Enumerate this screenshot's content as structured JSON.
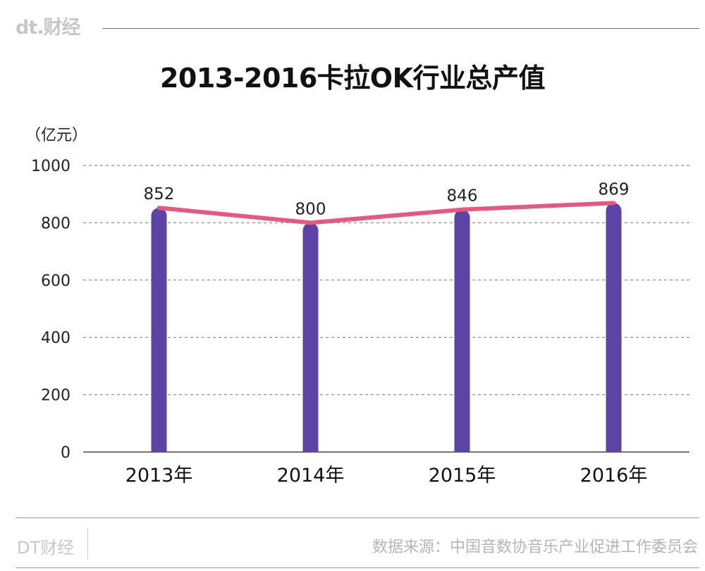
{
  "header": {
    "brand": "dt.财经"
  },
  "footer": {
    "brand": "DT财经",
    "source": "数据来源：中国音数协音乐产业促进工作委员会"
  },
  "colors": {
    "bar": "#5b44a6",
    "line": "#e5587f",
    "grid": "#777777"
  },
  "chart_data": {
    "type": "bar",
    "title": "2013-2016卡拉OK行业总产值",
    "ylabel": "（亿元）",
    "xlabel": "",
    "categories": [
      "2013年",
      "2014年",
      "2015年",
      "2016年"
    ],
    "series": [
      {
        "values": [
          852,
          800,
          846,
          869
        ]
      }
    ],
    "overlay_line": true,
    "data_labels": [
      "852",
      "800",
      "846",
      "869"
    ],
    "ylim": [
      0,
      1000
    ],
    "yticks": [
      0,
      200,
      400,
      600,
      800,
      1000
    ],
    "grid": true,
    "legend": "none"
  }
}
